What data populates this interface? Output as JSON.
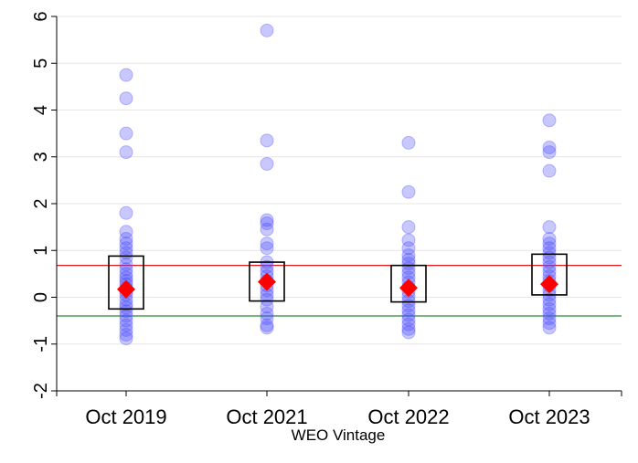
{
  "chart_data": {
    "type": "scatter",
    "xlabel": "WEO Vintage",
    "ylabel": "",
    "ylim": [
      -2,
      6
    ],
    "yticks": [
      -2,
      -1,
      0,
      1,
      2,
      3,
      4,
      5,
      6
    ],
    "grid": true,
    "categories": [
      "Oct 2019",
      "Oct 2021",
      "Oct 2022",
      "Oct 2023"
    ],
    "reference_lines": [
      {
        "y": 0.68,
        "color": "#e41a1c"
      },
      {
        "y": -0.4,
        "color": "#2e8b2e"
      }
    ],
    "colors": {
      "points": "#4a4aff",
      "mean": "#ff0000",
      "box": "#000000"
    },
    "groups": [
      {
        "category": "Oct 2019",
        "mean": 0.17,
        "box": [
          -0.25,
          0.88
        ],
        "points": [
          4.75,
          4.25,
          3.5,
          3.1,
          1.8,
          1.4,
          1.25,
          1.15,
          1.05,
          0.95,
          0.85,
          0.7,
          0.6,
          0.5,
          0.42,
          0.35,
          0.28,
          0.2,
          0.12,
          0.05,
          -0.05,
          -0.15,
          -0.22,
          -0.3,
          -0.4,
          -0.5,
          -0.6,
          -0.7,
          -0.8,
          -0.88
        ]
      },
      {
        "category": "Oct 2021",
        "mean": 0.33,
        "box": [
          -0.08,
          0.75
        ],
        "points": [
          5.7,
          3.35,
          2.85,
          1.65,
          1.58,
          1.45,
          1.15,
          1.05,
          0.75,
          0.65,
          0.55,
          0.45,
          0.35,
          0.25,
          0.15,
          0.05,
          -0.05,
          -0.2,
          -0.35,
          -0.45,
          -0.6,
          -0.65
        ]
      },
      {
        "category": "Oct 2022",
        "mean": 0.2,
        "box": [
          -0.1,
          0.68
        ],
        "points": [
          3.3,
          2.25,
          1.5,
          1.22,
          1.05,
          0.9,
          0.8,
          0.72,
          0.62,
          0.52,
          0.42,
          0.32,
          0.22,
          0.12,
          0.02,
          -0.08,
          -0.18,
          -0.28,
          -0.38,
          -0.48,
          -0.58,
          -0.68,
          -0.75
        ]
      },
      {
        "category": "Oct 2023",
        "mean": 0.28,
        "box": [
          0.05,
          0.92
        ],
        "points": [
          3.78,
          3.2,
          3.1,
          2.7,
          1.5,
          1.25,
          1.15,
          1.05,
          0.95,
          0.85,
          0.75,
          0.65,
          0.55,
          0.45,
          0.35,
          0.25,
          0.15,
          0.05,
          -0.05,
          -0.15,
          -0.25,
          -0.35,
          -0.45,
          -0.55,
          -0.65
        ]
      }
    ]
  }
}
